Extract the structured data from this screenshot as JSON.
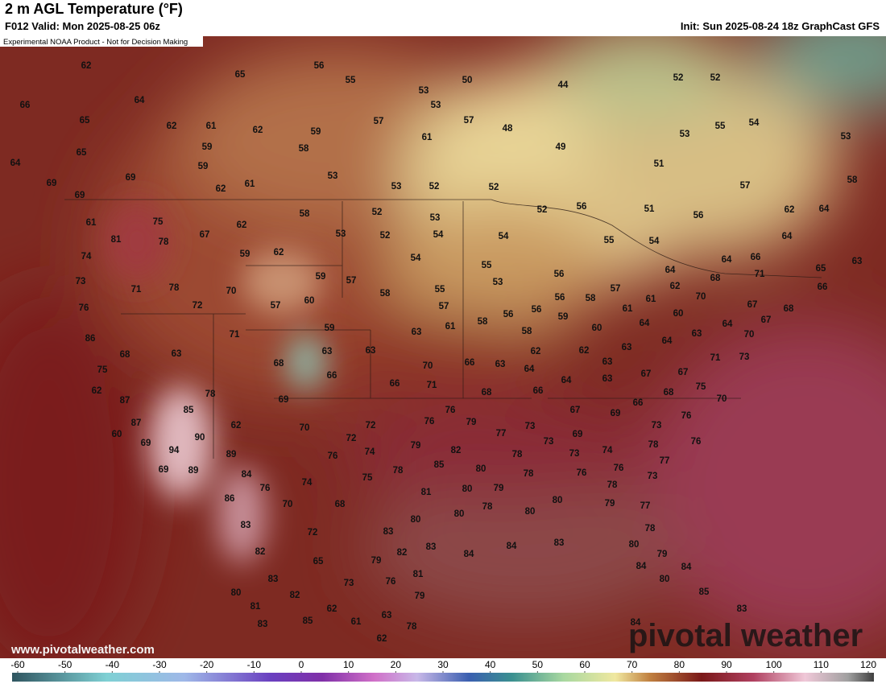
{
  "header": {
    "title": "2 m AGL Temperature (°F)",
    "valid": "F012 Valid: Mon 2025-08-25 06z",
    "init": "Init: Sun 2025-08-24 18z GraphCast GFS",
    "disclaimer": "Experimental NOAA Product - Not for Decision Making"
  },
  "map": {
    "labels": [
      62,
      65,
      56,
      55,
      53,
      50,
      44,
      52,
      52,
      66,
      64,
      65,
      62,
      61,
      62,
      59,
      57,
      53,
      57,
      48,
      61,
      53,
      55,
      54,
      53,
      65,
      59,
      58,
      49,
      51,
      64,
      59,
      53,
      69,
      69,
      62,
      61,
      53,
      52,
      52,
      57,
      58,
      69,
      51,
      56,
      62,
      64,
      61,
      75,
      62,
      58,
      52,
      53,
      52,
      56,
      81,
      78,
      67,
      53,
      52,
      54,
      54,
      55,
      54,
      64,
      74,
      59,
      62,
      54,
      55,
      64,
      66,
      65,
      63,
      73,
      71,
      78,
      70,
      59,
      57,
      58,
      55,
      53,
      56,
      56,
      57,
      58,
      64,
      62,
      68,
      70,
      71,
      66,
      76,
      72,
      57,
      60,
      57,
      56,
      56,
      59,
      61,
      61,
      60,
      67,
      68,
      64,
      67,
      86,
      71,
      59,
      63,
      61,
      58,
      58,
      60,
      64,
      63,
      64,
      70,
      68,
      63,
      63,
      63,
      62,
      62,
      63,
      71,
      73,
      75,
      68,
      66,
      70,
      66,
      63,
      64,
      63,
      67,
      67,
      62,
      87,
      78,
      66,
      71,
      68,
      64,
      63,
      66,
      68,
      75,
      70,
      69,
      85,
      67,
      66,
      69,
      76,
      72,
      76,
      76,
      79,
      77,
      73,
      69,
      73,
      87,
      60,
      90,
      62,
      70,
      72,
      73,
      74,
      78,
      76,
      69,
      94,
      89,
      76,
      74,
      79,
      82,
      73,
      76,
      76,
      77,
      78,
      69,
      89,
      84,
      78,
      85,
      80,
      78,
      73,
      78,
      76,
      74,
      75,
      81,
      80,
      79,
      86,
      70,
      68,
      78,
      80,
      79,
      77,
      80,
      80,
      80,
      83,
      72,
      83,
      78,
      82,
      82,
      83,
      84,
      84,
      83,
      80,
      79,
      65,
      79,
      84,
      84,
      83,
      73,
      76,
      81,
      80,
      80,
      82,
      79,
      85,
      81,
      62,
      63,
      78,
      83,
      83,
      85,
      61,
      84,
      62
    ]
  },
  "colorbar": {
    "ticks": [
      -60,
      -50,
      -40,
      -30,
      -20,
      -10,
      0,
      10,
      20,
      30,
      40,
      50,
      60,
      70,
      80,
      90,
      100,
      110,
      120
    ]
  },
  "footer": {
    "website": "www.pivotalweather.com",
    "watermark": "pivotal weather"
  }
}
